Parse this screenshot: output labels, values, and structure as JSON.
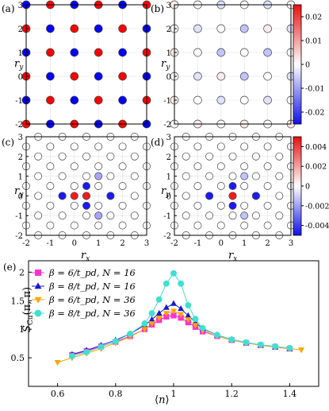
{
  "chart_data": [
    {
      "type": "scatter",
      "panel_label": "(a)",
      "xlim": [
        -2,
        3
      ],
      "ylim": [
        -2,
        3
      ],
      "xticks": [
        "-2",
        "-1",
        "0",
        "1",
        "2",
        "3"
      ],
      "yticks": [
        "-2",
        "-1",
        "0",
        "1",
        "2",
        "3"
      ],
      "xlabel": "",
      "ylabel": "r_y",
      "grid": true,
      "values": [
        [
          1,
          -1,
          1,
          -1,
          1,
          -1
        ],
        [
          -1,
          1,
          -1,
          1,
          -1,
          1
        ],
        [
          1,
          -1,
          1,
          -1,
          1,
          -1
        ],
        [
          -1,
          1,
          -1,
          1,
          -1,
          1
        ],
        [
          1,
          -1,
          1,
          -1,
          1,
          -1
        ],
        [
          -1,
          1,
          -1,
          1,
          -1,
          1
        ]
      ],
      "value_note": "rows: r_y = -2..3, columns: r_x = -2..3; +1 = red, -1 = blue, 0 = white"
    },
    {
      "type": "scatter",
      "panel_label": "(b)",
      "xlim": [
        -2,
        3
      ],
      "ylim": [
        -2,
        3
      ],
      "xticks": [
        "-2",
        "-1",
        "0",
        "1",
        "2",
        "3"
      ],
      "yticks": [
        "-2",
        "-1",
        "0",
        "1",
        "2",
        "3"
      ],
      "xlabel": "",
      "ylabel": "r_y",
      "grid": true,
      "colorbar": {
        "min": -0.025,
        "max": 0.025,
        "ticks": [
          0.02,
          0.01,
          0,
          -0.01,
          -0.02
        ],
        "tick_labels": [
          "0.02",
          "0.01",
          "0",
          "-0.01",
          "-0.02"
        ]
      },
      "values": [
        [
          0,
          0.002,
          0,
          0.002,
          0,
          0.002
        ],
        [
          0.002,
          0,
          -0.003,
          0,
          -0.003,
          0
        ],
        [
          0,
          -0.003,
          0.002,
          -0.006,
          0,
          -0.003
        ],
        [
          0.002,
          0,
          -0.006,
          0,
          -0.006,
          0
        ],
        [
          0,
          -0.003,
          0,
          -0.006,
          0.002,
          -0.003
        ],
        [
          0.002,
          0,
          -0.003,
          0,
          -0.003,
          0
        ]
      ]
    },
    {
      "type": "scatter",
      "panel_label": "(c)",
      "xlim": [
        -2,
        3
      ],
      "ylim": [
        -2,
        3
      ],
      "xticks": [
        "-2",
        "-1",
        "0",
        "1",
        "2",
        "3"
      ],
      "yticks": [
        "-2",
        "-1",
        "0",
        "1",
        "2",
        "3"
      ],
      "xlabel": "r_x",
      "ylabel": "r_y",
      "grid": true,
      "lattice": "oxygen",
      "values_main": [
        [
          0,
          0,
          0,
          0,
          0,
          0
        ],
        [
          0,
          0,
          0,
          0,
          0,
          0
        ],
        [
          0,
          0,
          -0.9,
          0,
          0,
          0
        ],
        [
          0,
          0,
          0.9,
          -0.9,
          0,
          0
        ],
        [
          0,
          0,
          0,
          0,
          0,
          0
        ],
        [
          0,
          0,
          0,
          0,
          0,
          0
        ]
      ],
      "values_x_bonds": [
        [
          0,
          0,
          0,
          0,
          0
        ],
        [
          0,
          0,
          0,
          0,
          0
        ],
        [
          0,
          0,
          0,
          0,
          0
        ],
        [
          0,
          0,
          0,
          0,
          0
        ],
        [
          0,
          0,
          0,
          0,
          0
        ],
        [
          0,
          0,
          0,
          0,
          0
        ]
      ],
      "values_y_bonds": [
        [
          0,
          0,
          0,
          0,
          0,
          0
        ],
        [
          0,
          0,
          0,
          0,
          0,
          0
        ],
        [
          0,
          0,
          0,
          0,
          0,
          0
        ],
        [
          0,
          0,
          0,
          0,
          0,
          0
        ],
        [
          0,
          0,
          0,
          0,
          0,
          0
        ],
        [
          0,
          0,
          0,
          0,
          0,
          0
        ]
      ],
      "values_center": [
        [
          0,
          0,
          0,
          0,
          0
        ],
        [
          0,
          0,
          0,
          0,
          0
        ],
        [
          0,
          0,
          0,
          0,
          0
        ],
        [
          0,
          0,
          0,
          0,
          0
        ],
        [
          0,
          0,
          0,
          0,
          0
        ]
      ],
      "extra_points": [
        {
          "x": -0.5,
          "y": 0.0,
          "value": -0.9
        },
        {
          "x": 1.5,
          "y": 0.0,
          "value": -0.9
        },
        {
          "x": 1.0,
          "y": 1.0,
          "value": -0.35
        },
        {
          "x": 1.0,
          "y": -1.0,
          "value": -0.35
        }
      ]
    },
    {
      "type": "scatter",
      "panel_label": "(d)",
      "xlim": [
        -2,
        3
      ],
      "ylim": [
        -2,
        3
      ],
      "xticks": [
        "-2",
        "-1",
        "0",
        "1",
        "2",
        "3"
      ],
      "yticks": [
        "-2",
        "-1",
        "0",
        "1",
        "2",
        "3"
      ],
      "xlabel": "r_x",
      "ylabel": "r_y",
      "grid": true,
      "colorbar": {
        "min": -0.005,
        "max": 0.005,
        "ticks": [
          0.004,
          0.002,
          0,
          -0.002,
          -0.004
        ],
        "tick_labels": [
          "0.004",
          "0.002",
          "0",
          "-0.002",
          "-0.004"
        ]
      },
      "points": [
        {
          "x": 0.5,
          "y": 0.0,
          "value": 0.0045
        },
        {
          "x": -0.5,
          "y": 0.0,
          "value": -0.0045
        },
        {
          "x": 1.5,
          "y": 0.0,
          "value": -0.0045
        },
        {
          "x": 0.5,
          "y": 0.5,
          "value": -0.0045
        },
        {
          "x": 0.5,
          "y": -0.5,
          "value": -0.0045
        },
        {
          "x": 1.0,
          "y": 1.0,
          "value": -0.0012
        },
        {
          "x": 1.0,
          "y": -1.0,
          "value": -0.0012
        }
      ]
    },
    {
      "type": "line",
      "panel_label": "(e)",
      "xlabel": "⟨n⟩",
      "ylabel": "S_Cu(π,π)",
      "xlim": [
        0.5,
        1.5
      ],
      "ylim": [
        0,
        2.2
      ],
      "xticks": [
        "0.6",
        "0.8",
        "1",
        "1.2",
        "1.4"
      ],
      "yticks": [
        "0",
        "0.5",
        "1",
        "1.5",
        "2"
      ],
      "legend_position": "top-left",
      "series": [
        {
          "name": "β = 6/t_pd, N = 16",
          "color": "#ff33cc",
          "marker": "square",
          "x": [
            0.65,
            0.7,
            0.75,
            0.8,
            0.85,
            0.9,
            0.925,
            0.95,
            0.975,
            1.0,
            1.025,
            1.05,
            1.075,
            1.1,
            1.15,
            1.2,
            1.25,
            1.3,
            1.35,
            1.4
          ],
          "y": [
            0.55,
            0.62,
            0.7,
            0.78,
            0.88,
            1.0,
            1.08,
            1.16,
            1.22,
            1.24,
            1.2,
            1.12,
            1.04,
            0.96,
            0.88,
            0.81,
            0.76,
            0.72,
            0.69,
            0.66
          ]
        },
        {
          "name": "β = 8/t_pd, N = 16",
          "color": "#1a1acc",
          "marker": "triangle-up",
          "x": [
            0.65,
            0.7,
            0.75,
            0.8,
            0.85,
            0.9,
            0.925,
            0.95,
            0.975,
            1.0,
            1.025,
            1.05,
            1.075,
            1.1,
            1.15,
            1.2,
            1.25,
            1.3,
            1.35,
            1.4
          ],
          "y": [
            0.56,
            0.63,
            0.72,
            0.81,
            0.92,
            1.07,
            1.17,
            1.28,
            1.38,
            1.45,
            1.36,
            1.24,
            1.12,
            1.01,
            0.9,
            0.82,
            0.77,
            0.72,
            0.69,
            0.66
          ]
        },
        {
          "name": "β = 6/t_pd, N = 36",
          "color": "#ffa500",
          "marker": "triangle-down",
          "x": [
            0.6,
            0.65,
            0.7,
            0.75,
            0.8,
            0.85,
            0.9,
            0.925,
            0.95,
            0.975,
            1.0,
            1.025,
            1.05,
            1.075,
            1.1,
            1.15,
            1.2,
            1.25,
            1.3,
            1.35,
            1.4,
            1.44
          ],
          "y": [
            0.42,
            0.5,
            0.58,
            0.66,
            0.76,
            0.87,
            1.0,
            1.1,
            1.2,
            1.28,
            1.32,
            1.26,
            1.17,
            1.07,
            0.98,
            0.88,
            0.81,
            0.76,
            0.72,
            0.69,
            0.66,
            0.64
          ]
        },
        {
          "name": "β = 8/t_pd, N = 36",
          "color": "#40e0d0",
          "marker": "circle",
          "x": [
            0.65,
            0.7,
            0.75,
            0.8,
            0.85,
            0.9,
            0.925,
            0.95,
            0.975,
            1.0,
            1.025,
            1.05,
            1.075,
            1.1,
            1.15,
            1.2,
            1.25,
            1.3,
            1.35,
            1.4
          ],
          "y": [
            0.53,
            0.6,
            0.69,
            0.79,
            0.92,
            1.1,
            1.28,
            1.52,
            1.8,
            1.98,
            1.8,
            1.42,
            1.18,
            1.02,
            0.9,
            0.82,
            0.77,
            0.73,
            0.7,
            0.67
          ]
        }
      ]
    }
  ]
}
